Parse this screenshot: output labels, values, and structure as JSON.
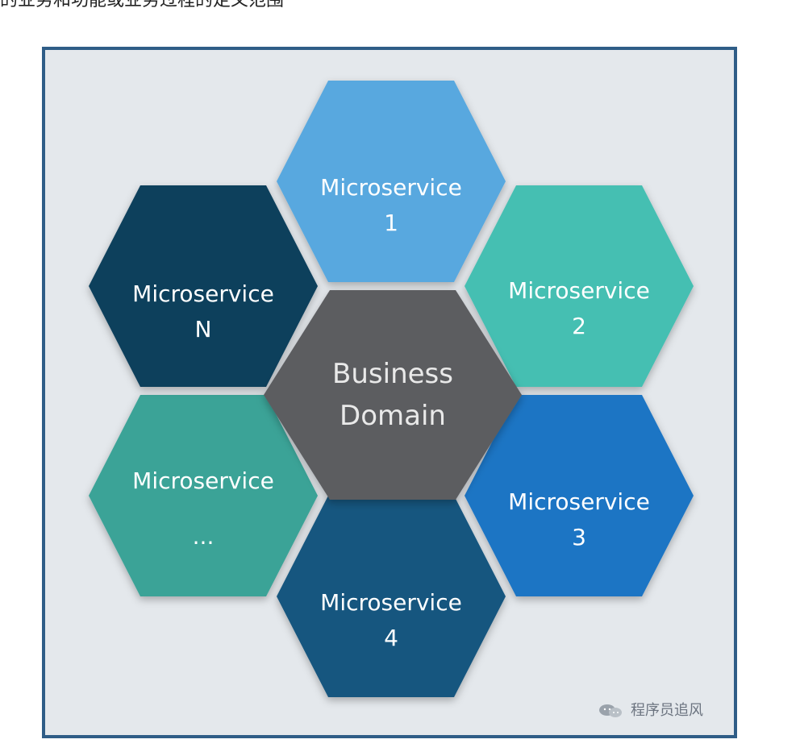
{
  "top_text": "的业务和功能或业务过程的定义范围",
  "diagram": {
    "center": {
      "lines": [
        "Business",
        "Domain"
      ],
      "color": "#5b5d61"
    },
    "hexagons": [
      {
        "id": "microservice-1",
        "lines": [
          "Microservice",
          "1"
        ],
        "color": "#58a8df"
      },
      {
        "id": "microservice-2",
        "lines": [
          "Microservice",
          "2"
        ],
        "color": "#44bfb2"
      },
      {
        "id": "microservice-3",
        "lines": [
          "Microservice",
          "3"
        ],
        "color": "#1f75c4"
      },
      {
        "id": "microservice-4",
        "lines": [
          "Microservice",
          "4"
        ],
        "color": "#17567f"
      },
      {
        "id": "microservice-ellipsis",
        "lines": [
          "Microservice",
          "..."
        ],
        "color": "#3aa397"
      },
      {
        "id": "microservice-n",
        "lines": [
          "Microservice",
          "N"
        ],
        "color": "#0f3f5c"
      }
    ],
    "frame_color": "#2f5d87",
    "background_color": "#e4e8ec"
  },
  "watermark": {
    "text": "程序员追风",
    "icon": "wechat-icon"
  }
}
